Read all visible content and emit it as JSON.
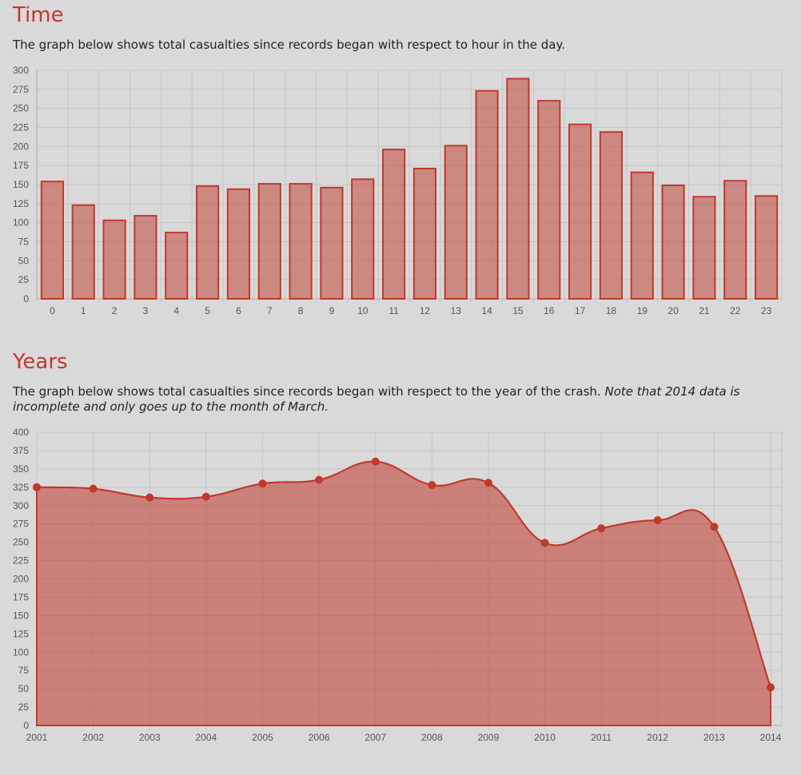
{
  "time_section": {
    "title": "Time",
    "description": "The graph below shows total casualties since records began with respect to hour in the day."
  },
  "years_section": {
    "title": "Years",
    "description": "The graph below shows total casualties since records began with respect to the year of the crash. ",
    "note": "Note that 2014 data is incomplete and only goes up to the month of March."
  },
  "colors": {
    "accent": "#c0392b",
    "fill": "rgba(192,57,43,0.5)",
    "background": "#d9d9d9"
  },
  "chart_data": [
    {
      "type": "bar",
      "categories": [
        "0",
        "1",
        "2",
        "3",
        "4",
        "5",
        "6",
        "7",
        "8",
        "9",
        "10",
        "11",
        "12",
        "13",
        "14",
        "15",
        "16",
        "17",
        "18",
        "19",
        "20",
        "21",
        "22",
        "23"
      ],
      "values": [
        154,
        123,
        103,
        109,
        87,
        148,
        144,
        151,
        151,
        146,
        157,
        196,
        171,
        201,
        273,
        289,
        260,
        229,
        219,
        166,
        149,
        134,
        155,
        135
      ],
      "ylim": [
        0,
        300
      ],
      "yticks": [
        0,
        25,
        50,
        75,
        100,
        125,
        150,
        175,
        200,
        225,
        250,
        275,
        300
      ],
      "grid": true
    },
    {
      "type": "area",
      "categories": [
        "2001",
        "2002",
        "2003",
        "2004",
        "2005",
        "2006",
        "2007",
        "2008",
        "2009",
        "2010",
        "2011",
        "2012",
        "2013",
        "2014"
      ],
      "values": [
        325,
        323,
        311,
        312,
        330,
        335,
        360,
        328,
        331,
        249,
        269,
        280,
        271,
        52
      ],
      "ylim": [
        0,
        400
      ],
      "yticks": [
        0,
        25,
        50,
        75,
        100,
        125,
        150,
        175,
        200,
        225,
        250,
        275,
        300,
        325,
        350,
        375,
        400
      ],
      "grid": true
    }
  ]
}
